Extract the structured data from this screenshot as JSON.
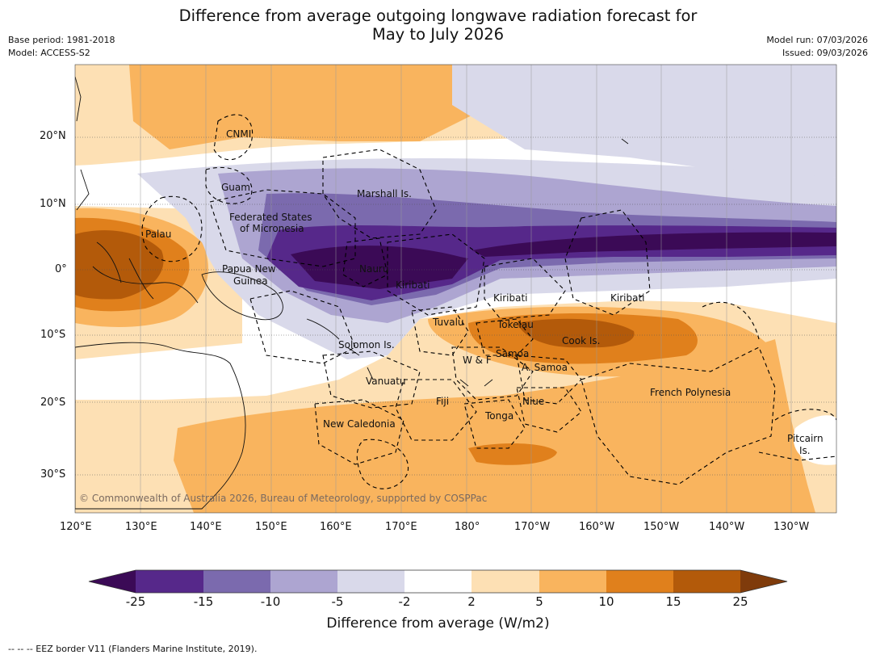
{
  "header": {
    "title_line1": "Difference from average outgoing longwave radiation forecast for",
    "title_line2": "May to July 2026",
    "base_period": "Base period: 1981-2018",
    "model": "Model: ACCESS-S2",
    "model_run": "Model run: 07/03/2026",
    "issued": "Issued: 09/03/2026"
  },
  "map": {
    "lon_labels": [
      "120°E",
      "130°E",
      "140°E",
      "150°E",
      "160°E",
      "170°E",
      "180°",
      "170°W",
      "160°W",
      "150°W",
      "140°W",
      "130°W"
    ],
    "lat_labels": [
      "20°N",
      "10°N",
      "0°",
      "10°S",
      "20°S",
      "30°S"
    ],
    "place_labels": {
      "cnmi": "CNMI",
      "guam": "Guam",
      "marshall": "Marshall Is.",
      "fsm_1": "Federated States",
      "fsm_2": "of Micronesia",
      "palau": "Palau",
      "png_1": "Papua New",
      "png_2": "Guinea",
      "nauru": "Nauru",
      "kiribati_w": "Kiribati",
      "kiribati_c": "Kiribati",
      "kiribati_e": "Kiribati",
      "tuvalu": "Tuvalu",
      "tokelau": "Tokelau",
      "cook": "Cook Is.",
      "solomon": "Solomon Is.",
      "wf": "W & F",
      "samoa": "Samoa",
      "asamoa": "A. Samoa",
      "vanuatu": "Vanuatu",
      "fiji": "Fiji",
      "niue": "Niue",
      "frpoly": "French Polynesia",
      "tonga": "Tonga",
      "newcal": "New Caledonia",
      "pitcairn_1": "Pitcairn",
      "pitcairn_2": "Is."
    },
    "copyright": "© Commonwealth of Australia 2026, Bureau of Meteorology, supported by COSPPac"
  },
  "colorbar": {
    "ticks": [
      "-25",
      "-15",
      "-10",
      "-5",
      "-2",
      "2",
      "5",
      "10",
      "15",
      "25"
    ],
    "colors": [
      "#3b0a56",
      "#56288a",
      "#7b6aae",
      "#ada5d1",
      "#d9d9ea",
      "#ffffff",
      "#fde0b4",
      "#f9b45e",
      "#e0801c",
      "#b35a0a",
      "#7f3b0b"
    ],
    "title": "Difference from average (W/m2)"
  },
  "footer": {
    "eez_note": "--  --  -- EEZ border V11 (Flanders Marine Institute, 2019)."
  }
}
